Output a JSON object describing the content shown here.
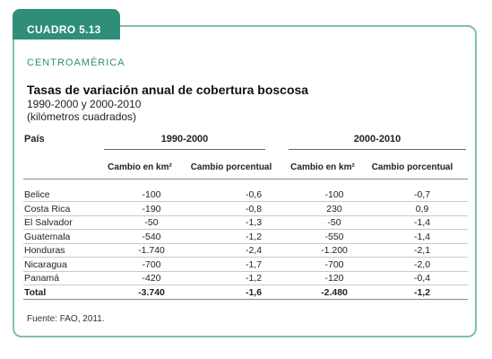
{
  "box": {
    "label": "CUADRO 5.13",
    "region": "CENTROAMÉRICA",
    "title": "Tasas de variación anual de cobertura boscosa",
    "subtitle": "1990-2000 y 2000-2010",
    "units": "(kilómetros cuadrados)"
  },
  "table": {
    "country_header": "País",
    "groups": [
      {
        "label": "1990-2000"
      },
      {
        "label": "2000-2010"
      }
    ],
    "subheaders": [
      "Cambio en km²",
      "Cambio porcentual",
      "Cambio en km²",
      "Cambio porcentual"
    ],
    "rows": [
      {
        "country": "Belice",
        "km1": "-100",
        "pct1": "-0,6",
        "km2": "-100",
        "pct2": "-0,7"
      },
      {
        "country": "Costa Rica",
        "km1": "-190",
        "pct1": "-0,8",
        "km2": "230",
        "pct2": "0,9"
      },
      {
        "country": "El Salvador",
        "km1": "-50",
        "pct1": "-1,3",
        "km2": "-50",
        "pct2": "-1,4"
      },
      {
        "country": "Guatemala",
        "km1": "-540",
        "pct1": "-1,2",
        "km2": "-550",
        "pct2": "-1,4"
      },
      {
        "country": "Honduras",
        "km1": "-1.740",
        "pct1": "-2,4",
        "km2": "-1.200",
        "pct2": "-2,1"
      },
      {
        "country": "Nicaragua",
        "km1": "-700",
        "pct1": "-1,7",
        "km2": "-700",
        "pct2": "-2,0"
      },
      {
        "country": "Panamá",
        "km1": "-420",
        "pct1": "-1,2",
        "km2": "-120",
        "pct2": "-0,4"
      }
    ],
    "total": {
      "country": "Total",
      "km1": "-3.740",
      "pct1": "-1,6",
      "km2": "-2.480",
      "pct2": "-1,2"
    }
  },
  "source": "Fuente: FAO, 2011.",
  "colors": {
    "accent": "#2f8e7a",
    "border": "#7fbfb0"
  }
}
